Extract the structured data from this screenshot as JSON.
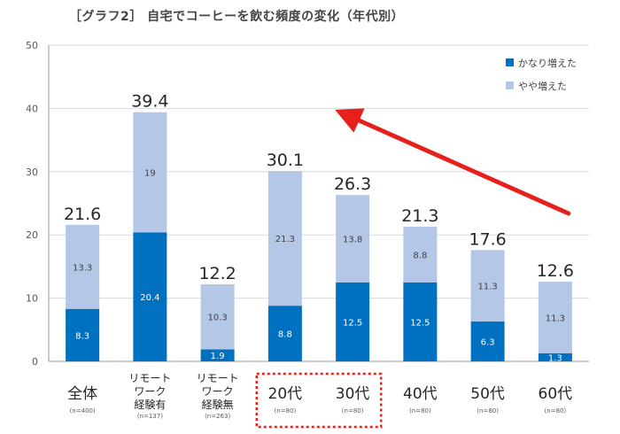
{
  "chart_data": {
    "type": "bar",
    "title": "［グラフ2］ 自宅でコーヒーを飲む頻度の変化（年代別）",
    "stacked": true,
    "ylim": [
      0,
      50
    ],
    "yticks": [
      0,
      10,
      20,
      30,
      40,
      50
    ],
    "grid": true,
    "legend_position": "top-right",
    "categories": [
      {
        "lines": [
          "全体"
        ],
        "n": "(n=400)"
      },
      {
        "lines": [
          "リモート",
          "ワーク",
          "経験有"
        ],
        "n": "(n=137)"
      },
      {
        "lines": [
          "リモート",
          "ワーク",
          "経験無"
        ],
        "n": "(n=263)"
      },
      {
        "lines": [
          "20代"
        ],
        "n": "(n=80)"
      },
      {
        "lines": [
          "30代"
        ],
        "n": "(n=80)"
      },
      {
        "lines": [
          "40代"
        ],
        "n": "(n=80)"
      },
      {
        "lines": [
          "50代"
        ],
        "n": "(n=80)"
      },
      {
        "lines": [
          "60代"
        ],
        "n": "(n=80)"
      }
    ],
    "series": [
      {
        "name": "かなり増えた",
        "color": "#0070c0",
        "values": [
          8.3,
          20.4,
          1.9,
          8.8,
          12.5,
          12.5,
          6.3,
          1.3
        ],
        "labels": [
          "8.3",
          "20.4",
          "1.9",
          "8.8",
          "12.5",
          "12.5",
          "6.3",
          "1.3"
        ]
      },
      {
        "name": "やや増えた",
        "color": "#b4c7e7",
        "values": [
          13.3,
          19,
          10.3,
          21.3,
          13.8,
          8.8,
          11.3,
          11.3
        ],
        "labels": [
          "13.3",
          "19",
          "10.3",
          "21.3",
          "13.8",
          "8.8",
          "11.3",
          "11.3"
        ]
      }
    ],
    "totals": [
      "21.6",
      "39.4",
      "12.2",
      "30.1",
      "26.3",
      "21.3",
      "17.6",
      "12.6"
    ],
    "annotations": {
      "arrow": {
        "from_category": 7,
        "to_category": 3,
        "color": "#e8201c"
      },
      "highlight_box": {
        "categories": [
          3,
          4
        ],
        "color": "#e8201c",
        "style": "dotted"
      }
    }
  }
}
